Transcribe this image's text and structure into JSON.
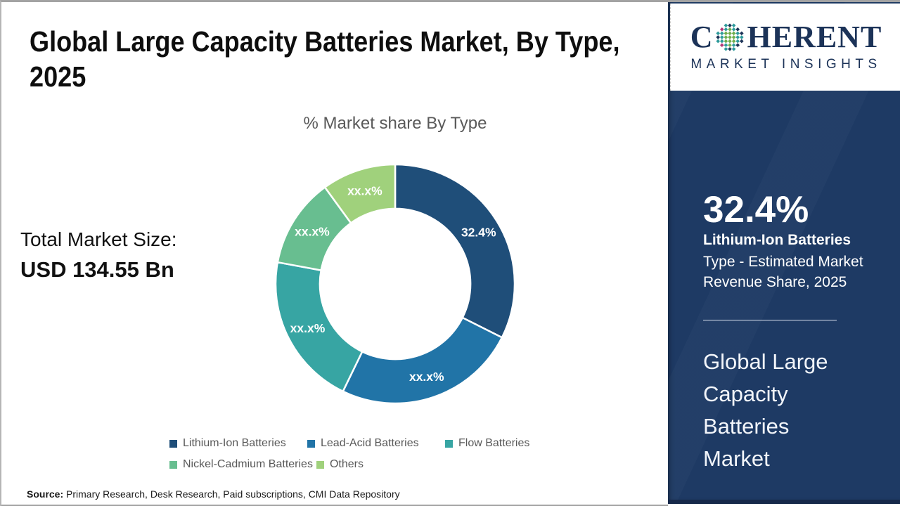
{
  "colors": {
    "page_bg": "#ffffff",
    "frame_gray": "#a3a3a3",
    "title_text": "#0e0e0e",
    "subtitle_text": "#595959",
    "legend_text": "#595959",
    "sidebar_bg": "#1e3a64",
    "sidebar_text": "#ffffff",
    "logo_navy": "#1c3358",
    "logo_teal": "#2e9b9b",
    "logo_green": "#6fae4e",
    "logo_magenta": "#b53778"
  },
  "header": {
    "title": "Global Large Capacity Batteries Market, By Type, 2025"
  },
  "market_size": {
    "label": "Total Market Size:",
    "value": "USD 134.55 Bn"
  },
  "chart_data": {
    "type": "donut",
    "title": "% Market share By Type",
    "series": [
      {
        "name": "Lithium-Ion Batteries",
        "value": 32.4,
        "label": "32.4%",
        "color": "#1F4E79"
      },
      {
        "name": "Lead-Acid Batteries",
        "value": 24.8,
        "label": "xx.x%",
        "color": "#2174A7"
      },
      {
        "name": "Flow Batteries",
        "value": 20.7,
        "label": "xx.x%",
        "color": "#37A5A3"
      },
      {
        "name": "Nickel-Cadmium Batteries",
        "value": 12.1,
        "label": "xx.x%",
        "color": "#68BE90"
      },
      {
        "name": "Others",
        "value": 10.0,
        "label": "xx.x%",
        "color": "#A0D17C"
      }
    ],
    "start_angle_deg": 0,
    "inner_radius_ratio": 0.63,
    "legend_rows": [
      3,
      2
    ]
  },
  "source": {
    "prefix": "Source:",
    "text": " Primary Research, Desk Research, Paid subscriptions, CMI Data Repository"
  },
  "sidebar": {
    "logo": {
      "word_start": "C",
      "word_end": "HERENT",
      "subtitle": "MARKET INSIGHTS",
      "globe_icon": "dotted-globe"
    },
    "stat_value": "32.4%",
    "stat_name": "Lithium-Ion Batteries",
    "stat_desc": "Type - Estimated Market Revenue Share, 2025",
    "panel_title": "Global Large Capacity Batteries Market"
  }
}
